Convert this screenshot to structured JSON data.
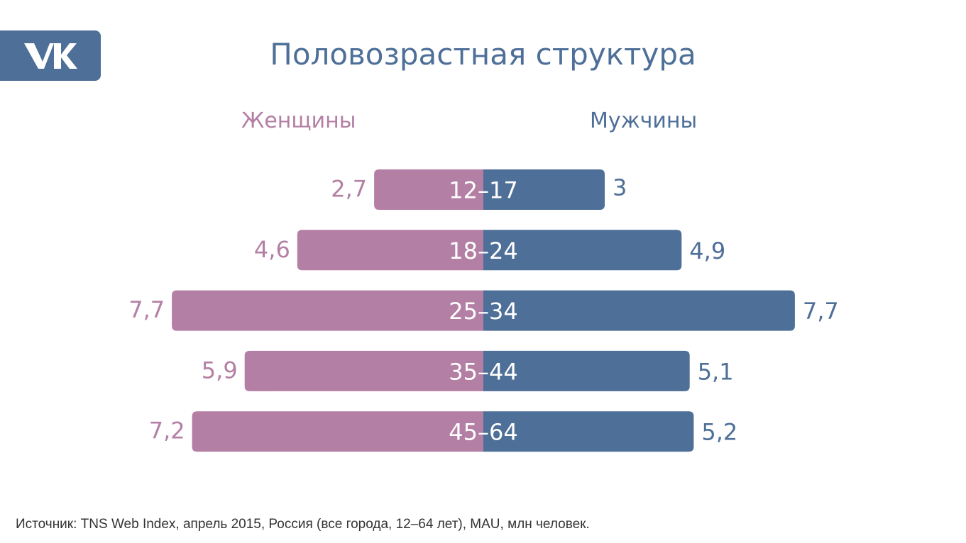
{
  "logo": {
    "text": "VK"
  },
  "title": "Половозрастная структура",
  "colors": {
    "female": "#b47fa4",
    "male": "#4e6f98",
    "title": "#4e6f98",
    "logo_bg": "#4e6f98",
    "source_text": "#333333",
    "bar_label": "#ffffff"
  },
  "chart_data": {
    "type": "bar",
    "orientation": "horizontal-diverging",
    "categories": [
      "12–17",
      "18–24",
      "25–34",
      "35–44",
      "45–64"
    ],
    "series": [
      {
        "name": "Женщины",
        "values": [
          2.7,
          4.6,
          7.7,
          5.9,
          7.2
        ],
        "labels": [
          "2,7",
          "4,6",
          "7,7",
          "5,9",
          "7,2"
        ]
      },
      {
        "name": "Мужчины",
        "values": [
          3,
          4.9,
          7.7,
          5.1,
          5.2
        ],
        "labels": [
          "3",
          "4,9",
          "7,7",
          "5,1",
          "5,2"
        ]
      }
    ],
    "grid": false
  },
  "source": "Источник: TNS Web Index, апрель 2015, Россия (все города, 12–64 лет), MAU, млн человек."
}
